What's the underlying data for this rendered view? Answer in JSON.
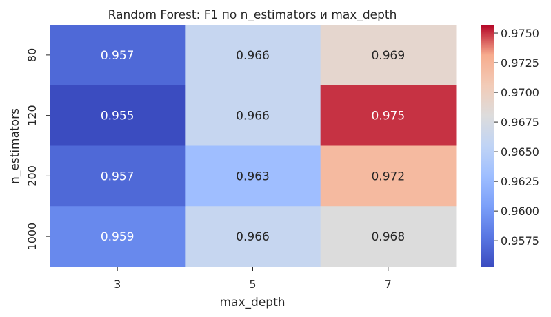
{
  "chart_data": {
    "type": "heatmap",
    "title": "Random Forest: F1 по n_estimators и max_depth",
    "xlabel": "max_depth",
    "ylabel": "n_estimators",
    "x_categories": [
      "3",
      "5",
      "7"
    ],
    "y_categories": [
      "80",
      "120",
      "200",
      "1000"
    ],
    "values": [
      [
        0.957,
        0.966,
        0.969
      ],
      [
        0.955,
        0.966,
        0.975
      ],
      [
        0.957,
        0.963,
        0.972
      ],
      [
        0.959,
        0.966,
        0.968
      ]
    ],
    "annotations": [
      [
        "0.957",
        "0.966",
        "0.969"
      ],
      [
        "0.955",
        "0.966",
        "0.975"
      ],
      [
        "0.957",
        "0.963",
        "0.972"
      ],
      [
        "0.959",
        "0.966",
        "0.968"
      ]
    ],
    "colormap": "coolwarm",
    "colorbar": {
      "range": [
        0.9553,
        0.9757
      ],
      "ticks": [
        0.9575,
        0.96,
        0.9625,
        0.965,
        0.9675,
        0.97,
        0.9725,
        0.975
      ],
      "tick_labels": [
        "0.9575",
        "0.9600",
        "0.9625",
        "0.9650",
        "0.9675",
        "0.9700",
        "0.9725",
        "0.9750"
      ]
    }
  }
}
